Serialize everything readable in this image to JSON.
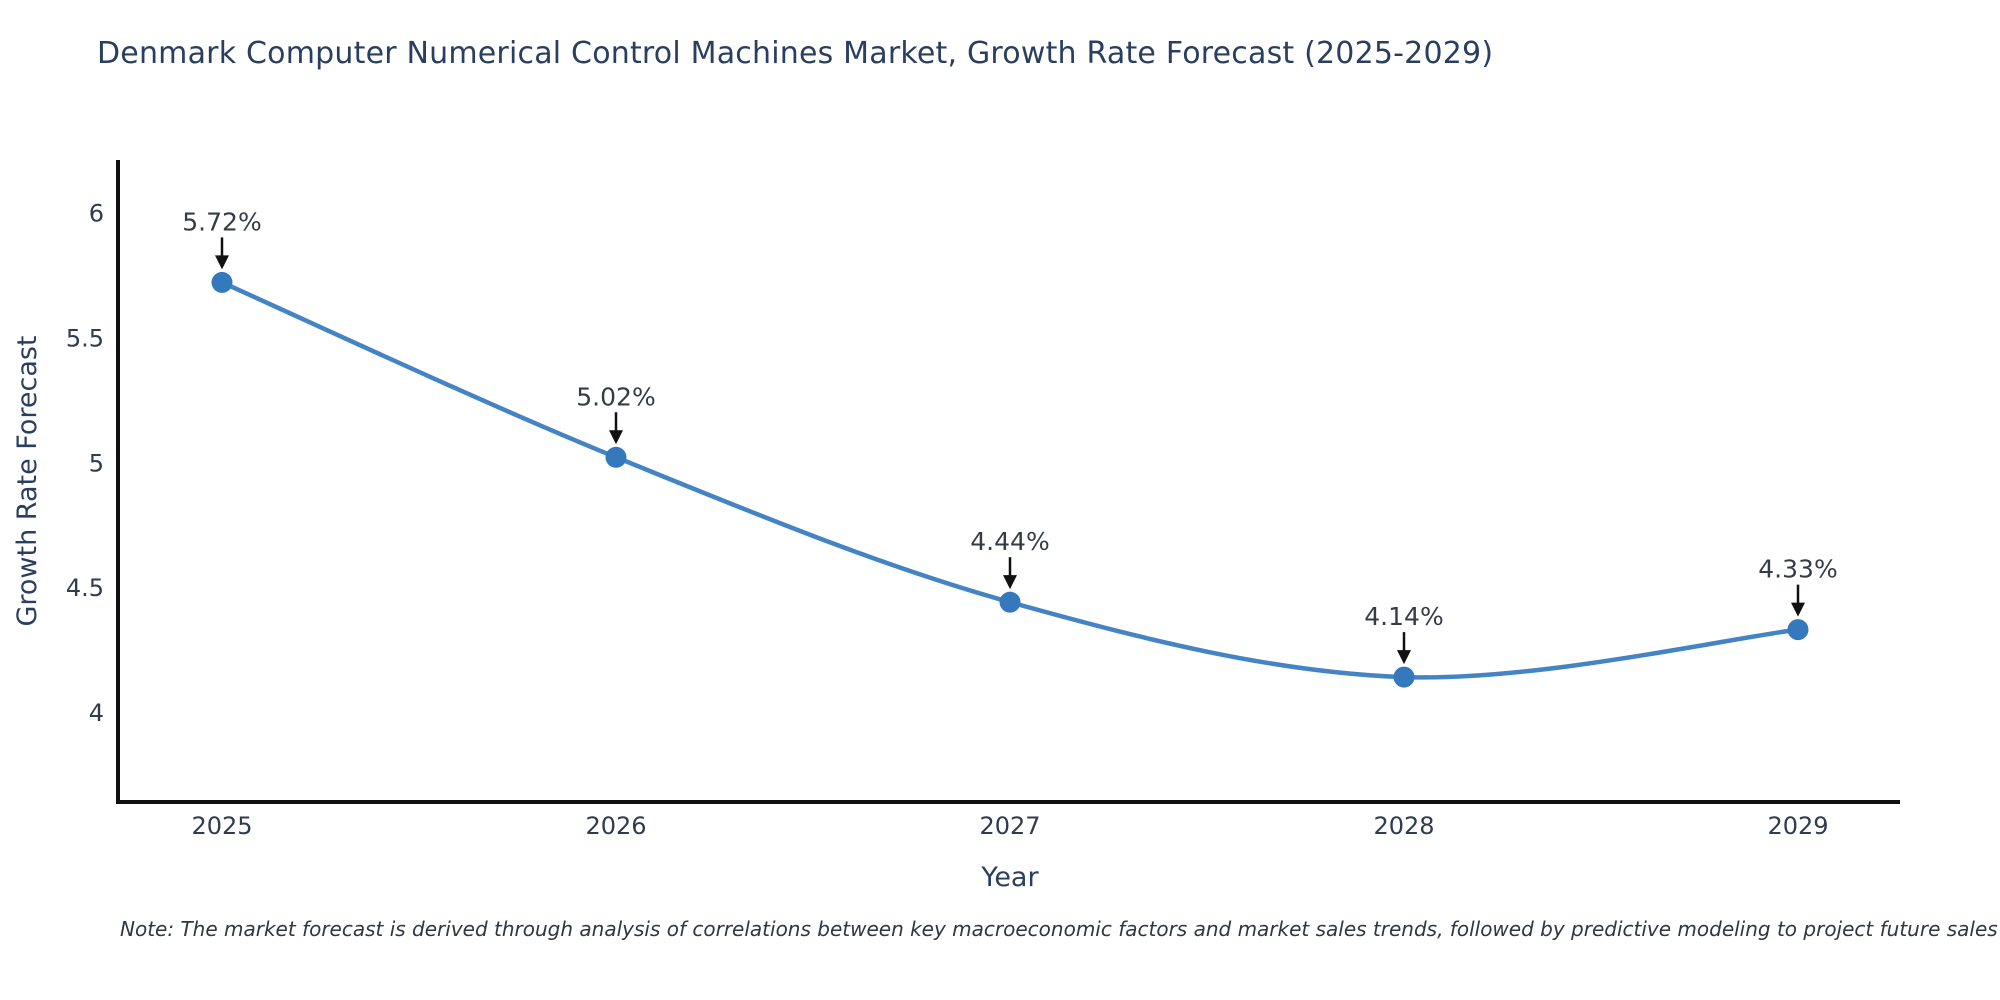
{
  "chart_data": {
    "type": "line",
    "title": "Denmark Computer Numerical Control Machines Market, Growth Rate Forecast (2025-2029)",
    "categories": [
      "2025",
      "2026",
      "2027",
      "2028",
      "2029"
    ],
    "values": [
      5.72,
      5.02,
      4.44,
      4.14,
      4.33
    ],
    "point_labels": [
      "5.72%",
      "5.02%",
      "4.44%",
      "4.14%",
      "4.33%"
    ],
    "xlabel": "Year",
    "ylabel": "Growth Rate Forecast",
    "yticks": [
      4,
      4.5,
      5,
      5.5,
      6
    ],
    "ytick_labels": [
      "4",
      "4.5",
      "5",
      "5.5",
      "6"
    ],
    "ylim": [
      3.64,
      6.21
    ],
    "grid": false,
    "legend": "none",
    "line_shape": "spline",
    "colors": {
      "line": "#4484c4",
      "marker": "#3579bd",
      "arrow": "#111111",
      "axis_line": "#111111",
      "title": "#2a3f5f",
      "tick": "#2f3b4e",
      "annotation_text": "#363c46"
    }
  },
  "note": "Note: The market forecast is derived through analysis of correlations between key macroeconomic factors and market sales trends, followed by predictive modeling to project future sales"
}
